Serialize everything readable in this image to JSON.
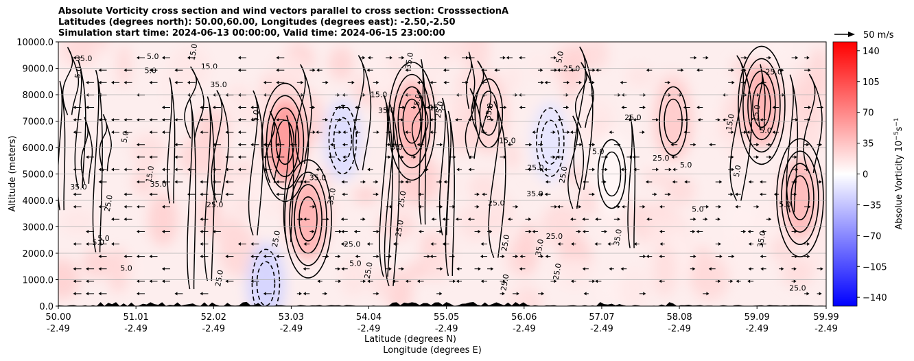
{
  "chart_data": {
    "type": "heatmap",
    "title_lines": [
      "Absolute Vorticity cross section and wind vectors parallel to cross section: CrosssectionA",
      "Latitudes (degrees north): 50.00,60.00, Longitudes (degrees east): -2.50,-2.50",
      "Simulation start time: 2024-06-13 00:00:00, Valid time: 2024-06-15 23:00:00"
    ],
    "xlabel_line1": "Latitude (degrees N)",
    "xlabel_line2": "Longitude (degrees E)",
    "ylabel": "Altitude (meters)",
    "xlim": [
      50.0,
      59.99
    ],
    "ylim": [
      0,
      10000
    ],
    "x_ticks_lat": [
      "50.00",
      "51.01",
      "52.02",
      "53.03",
      "54.04",
      "55.05",
      "56.06",
      "57.07",
      "58.08",
      "59.09",
      "59.99"
    ],
    "x_ticks_lon": [
      "-2.49",
      "-2.49",
      "-2.49",
      "-2.49",
      "-2.49",
      "-2.49",
      "-2.49",
      "-2.49",
      "-2.49",
      "-2.49",
      "-2.49"
    ],
    "y_ticks": [
      "0.0",
      "1000.0",
      "2000.0",
      "3000.0",
      "4000.0",
      "5000.0",
      "6000.0",
      "7000.0",
      "8000.0",
      "9000.0",
      "10000.0"
    ],
    "y_tick_values": [
      0,
      1000,
      2000,
      3000,
      4000,
      5000,
      6000,
      7000,
      8000,
      9000,
      10000
    ],
    "grid_y": true,
    "colorbar": {
      "label_main": "Absolue Vorticity 10",
      "label_exp1": "−5",
      "label_unit": "s",
      "label_exp2": "−1",
      "cmap": "bwr",
      "range": [
        -150,
        150
      ],
      "ticks": [
        "140",
        "105",
        "70",
        "35",
        "0",
        "−35",
        "−70",
        "−105",
        "−140"
      ],
      "tick_values": [
        140,
        105,
        70,
        35,
        0,
        -35,
        -70,
        -105,
        -140
      ]
    },
    "quiver_key": "50 m/s",
    "contour_levels": [
      5.0,
      15.0,
      25.0,
      35.0,
      45.0
    ],
    "contour_labels": [
      "5.0",
      "15.0",
      "25.0",
      "35.0",
      "45.0"
    ],
    "vorticity_features": [
      {
        "lat": 52.95,
        "alt": 6200,
        "value": 60
      },
      {
        "lat": 53.25,
        "alt": 3300,
        "value": 45
      },
      {
        "lat": 54.6,
        "alt": 7000,
        "value": 45
      },
      {
        "lat": 59.15,
        "alt": 7600,
        "value": 45
      },
      {
        "lat": 59.65,
        "alt": 4100,
        "value": 40
      },
      {
        "lat": 55.6,
        "alt": 7300,
        "value": 25
      },
      {
        "lat": 53.7,
        "alt": 6300,
        "value": -20
      },
      {
        "lat": 52.7,
        "alt": 850,
        "value": -25
      },
      {
        "lat": 56.4,
        "alt": 6200,
        "value": -15
      },
      {
        "lat": 57.2,
        "alt": 5000,
        "value": 5
      },
      {
        "lat": 58.0,
        "alt": 7000,
        "value": 30
      }
    ]
  }
}
